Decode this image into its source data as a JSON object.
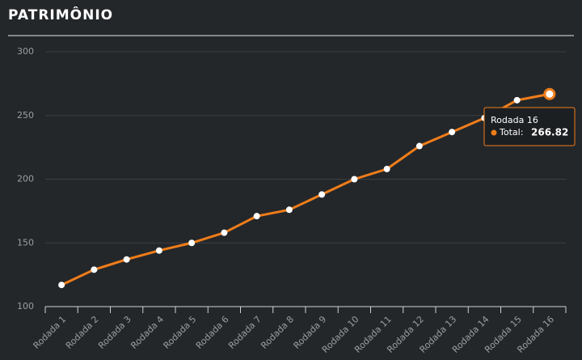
{
  "chart_data": {
    "type": "line",
    "title": "PATRIMÔNIO",
    "categories": [
      "Rodada 1",
      "Rodada 2",
      "Rodada 3",
      "Rodada 4",
      "Rodada 5",
      "Rodada 6",
      "Rodada 7",
      "Rodada 8",
      "Rodada 9",
      "Rodada 10",
      "Rodada 11",
      "Rodada 12",
      "Rodada 13",
      "Rodada 14",
      "Rodada 15",
      "Rodada 16"
    ],
    "series": [
      {
        "color": "#f07d1a",
        "values": [
          117,
          129,
          137,
          144,
          150,
          158,
          171,
          176,
          188,
          200,
          208,
          226,
          237,
          248,
          262,
          266.82
        ]
      }
    ],
    "ylim": [
      100,
      300
    ],
    "yticks": [
      100,
      150,
      200,
      250,
      300
    ],
    "grid": true,
    "tooltip": {
      "label": "Total:"
    }
  }
}
